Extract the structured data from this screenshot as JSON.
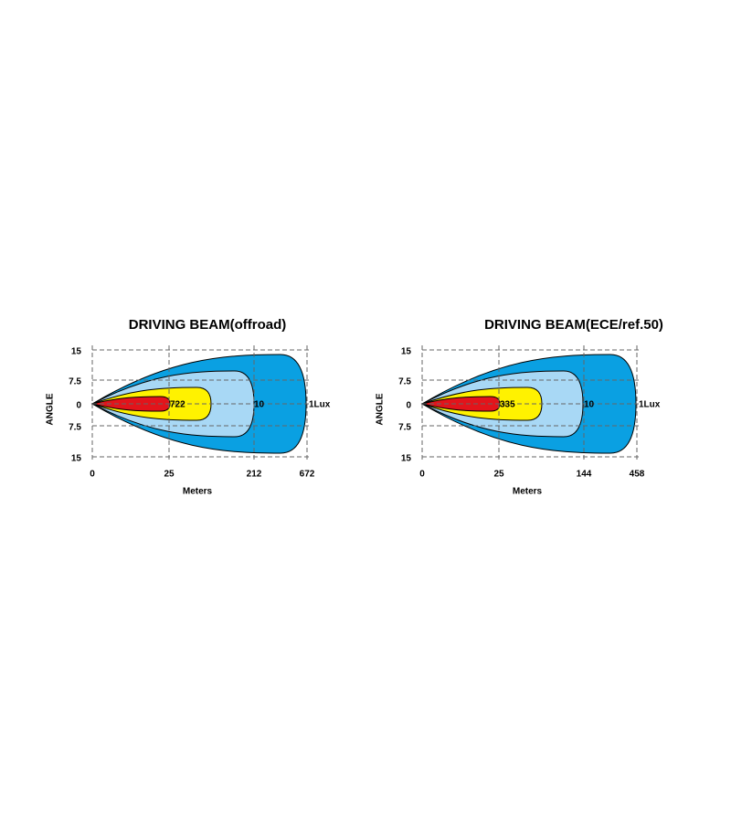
{
  "diagrams": [
    {
      "title": "DRIVING  BEAM(offroad)",
      "y_axis_label": "ANGLE",
      "x_axis_label": "Meters",
      "y_ticks": [
        15,
        7.5,
        0,
        7.5,
        15
      ],
      "x_ticks": [
        0,
        25,
        212,
        672
      ],
      "zone_labels": [
        722,
        10,
        "1Lux"
      ]
    },
    {
      "title": "DRIVING  BEAM(ECE/ref.50)",
      "y_axis_label": "ANGLE",
      "x_axis_label": "Meters",
      "y_ticks": [
        15,
        7.5,
        0,
        7.5,
        15
      ],
      "x_ticks": [
        0,
        25,
        144,
        458
      ],
      "zone_labels": [
        335,
        10,
        "1Lux"
      ]
    }
  ]
}
